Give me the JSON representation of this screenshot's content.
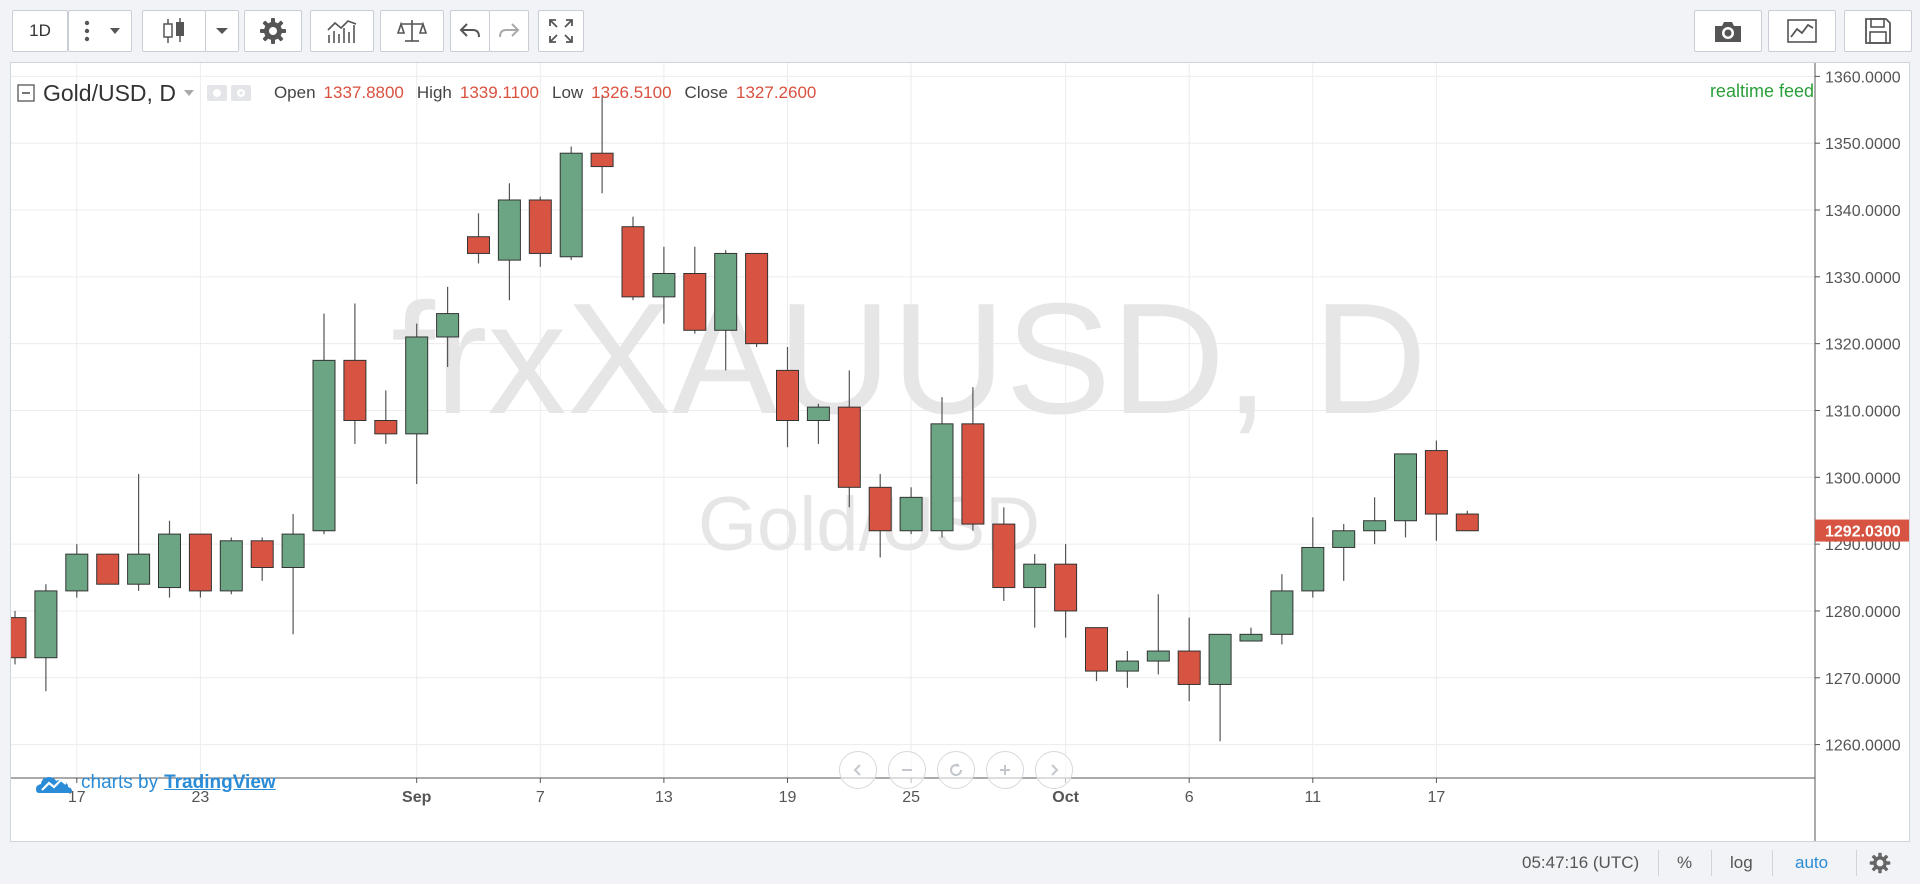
{
  "toolbar": {
    "interval_label": "1D",
    "icons": [
      "more-vertical-icon",
      "dropdown-arrow-icon",
      "candlestick-icon",
      "dropdown-arrow-icon",
      "gear-icon",
      "indicators-icon",
      "compare-icon",
      "undo-icon",
      "redo-icon",
      "fullscreen-icon",
      "camera-icon",
      "chart-template-icon",
      "save-icon"
    ]
  },
  "legend": {
    "symbol": "Gold/USD, D",
    "open_label": "Open",
    "open_value": "1337.8800",
    "high_label": "High",
    "high_value": "1339.1100",
    "low_label": "Low",
    "low_value": "1326.5100",
    "close_label": "Close",
    "close_value": "1327.2600"
  },
  "feed_label": "realtime feed",
  "watermark": {
    "main": "frxXAUUSD, D",
    "sub": "Gold/USD"
  },
  "branding": {
    "prefix": "charts by",
    "link": "TradingView"
  },
  "bottom": {
    "time": "05:47:16 (UTC)",
    "percent": "%",
    "log": "log",
    "auto": "auto"
  },
  "colors": {
    "up": "#6ba583",
    "down": "#d75442",
    "price_label": "#d75442",
    "auto": "#2a8bd6",
    "feed": "#2a9f3a"
  },
  "chart_data": {
    "type": "candlestick",
    "ylim": [
      1255,
      1362
    ],
    "yticks": [
      1260,
      1270,
      1280,
      1290,
      1300,
      1310,
      1320,
      1330,
      1340,
      1350,
      1360
    ],
    "ytick_labels": [
      "1260.0000",
      "1270.0000",
      "1280.0000",
      "1290.0000",
      "1300.0000",
      "1310.0000",
      "1320.0000",
      "1330.0000",
      "1340.0000",
      "1350.0000",
      "1360.0000"
    ],
    "last_price": 1292.03,
    "last_price_label": "1292.0300",
    "x_ticks": [
      {
        "idx": 2,
        "label": "17"
      },
      {
        "idx": 6,
        "label": "23"
      },
      {
        "idx": 13,
        "label": "Sep"
      },
      {
        "idx": 17,
        "label": "7"
      },
      {
        "idx": 21,
        "label": "13"
      },
      {
        "idx": 25,
        "label": "19"
      },
      {
        "idx": 29,
        "label": "25"
      },
      {
        "idx": 34,
        "label": "Oct"
      },
      {
        "idx": 38,
        "label": "6"
      },
      {
        "idx": 42,
        "label": "11"
      },
      {
        "idx": 46,
        "label": "17"
      }
    ],
    "candles": [
      {
        "o": 1279,
        "h": 1280,
        "l": 1272,
        "c": 1273
      },
      {
        "o": 1273,
        "h": 1284,
        "l": 1268,
        "c": 1283
      },
      {
        "o": 1283,
        "h": 1290,
        "l": 1282,
        "c": 1288.5
      },
      {
        "o": 1288.5,
        "h": 1288.5,
        "l": 1284,
        "c": 1284
      },
      {
        "o": 1284,
        "h": 1300.5,
        "l": 1283,
        "c": 1288.5
      },
      {
        "o": 1283.5,
        "h": 1293.5,
        "l": 1282,
        "c": 1291.5
      },
      {
        "o": 1291.5,
        "h": 1291.5,
        "l": 1282,
        "c": 1283
      },
      {
        "o": 1283,
        "h": 1291,
        "l": 1282.5,
        "c": 1290.5
      },
      {
        "o": 1290.5,
        "h": 1291,
        "l": 1284.5,
        "c": 1286.5
      },
      {
        "o": 1286.5,
        "h": 1294.5,
        "l": 1276.5,
        "c": 1291.5
      },
      {
        "o": 1292,
        "h": 1324.5,
        "l": 1291.5,
        "c": 1317.5
      },
      {
        "o": 1317.5,
        "h": 1326,
        "l": 1305,
        "c": 1308.5
      },
      {
        "o": 1308.5,
        "h": 1313,
        "l": 1305,
        "c": 1306.5
      },
      {
        "o": 1306.5,
        "h": 1323,
        "l": 1299,
        "c": 1321
      },
      {
        "o": 1321,
        "h": 1328.5,
        "l": 1316.5,
        "c": 1324.5
      },
      {
        "o": 1336,
        "h": 1339.5,
        "l": 1332,
        "c": 1333.5
      },
      {
        "o": 1332.5,
        "h": 1344,
        "l": 1326.5,
        "c": 1341.5
      },
      {
        "o": 1341.5,
        "h": 1342,
        "l": 1331.5,
        "c": 1333.5
      },
      {
        "o": 1333,
        "h": 1349.5,
        "l": 1332.5,
        "c": 1348.5
      },
      {
        "o": 1348.5,
        "h": 1357,
        "l": 1342.5,
        "c": 1346.5
      },
      {
        "o": 1337.5,
        "h": 1339,
        "l": 1326.5,
        "c": 1327
      },
      {
        "o": 1327,
        "h": 1334.5,
        "l": 1323,
        "c": 1330.5
      },
      {
        "o": 1330.5,
        "h": 1334.5,
        "l": 1321.5,
        "c": 1322
      },
      {
        "o": 1322,
        "h": 1334,
        "l": 1316,
        "c": 1333.5
      },
      {
        "o": 1333.5,
        "h": 1333.5,
        "l": 1319.5,
        "c": 1320
      },
      {
        "o": 1316,
        "h": 1319.5,
        "l": 1304.5,
        "c": 1308.5
      },
      {
        "o": 1308.5,
        "h": 1311,
        "l": 1305,
        "c": 1310.5
      },
      {
        "o": 1310.5,
        "h": 1316,
        "l": 1295.5,
        "c": 1298.5
      },
      {
        "o": 1298.5,
        "h": 1300.5,
        "l": 1288,
        "c": 1292
      },
      {
        "o": 1292,
        "h": 1298.5,
        "l": 1291.5,
        "c": 1297
      },
      {
        "o": 1292,
        "h": 1312,
        "l": 1291,
        "c": 1308
      },
      {
        "o": 1308,
        "h": 1313.5,
        "l": 1292,
        "c": 1293
      },
      {
        "o": 1293,
        "h": 1295.5,
        "l": 1281.5,
        "c": 1283.5
      },
      {
        "o": 1283.5,
        "h": 1288.5,
        "l": 1277.5,
        "c": 1287
      },
      {
        "o": 1287,
        "h": 1290,
        "l": 1276,
        "c": 1280
      },
      {
        "o": 1277.5,
        "h": 1277.5,
        "l": 1269.5,
        "c": 1271
      },
      {
        "o": 1271,
        "h": 1274,
        "l": 1268.5,
        "c": 1272.5
      },
      {
        "o": 1272.5,
        "h": 1282.5,
        "l": 1270.5,
        "c": 1274
      },
      {
        "o": 1274,
        "h": 1279,
        "l": 1266.5,
        "c": 1269
      },
      {
        "o": 1269,
        "h": 1276.5,
        "l": 1260.5,
        "c": 1276.5
      },
      {
        "o": 1275.5,
        "h": 1277.5,
        "l": 1275.5,
        "c": 1276.5
      },
      {
        "o": 1276.5,
        "h": 1285.5,
        "l": 1275,
        "c": 1283
      },
      {
        "o": 1283,
        "h": 1294,
        "l": 1282,
        "c": 1289.5
      },
      {
        "o": 1289.5,
        "h": 1293,
        "l": 1284.5,
        "c": 1292
      },
      {
        "o": 1292,
        "h": 1297,
        "l": 1290,
        "c": 1293.5
      },
      {
        "o": 1293.5,
        "h": 1303.5,
        "l": 1291,
        "c": 1303.5
      },
      {
        "o": 1304,
        "h": 1305.5,
        "l": 1290.5,
        "c": 1294.5
      },
      {
        "o": 1294.5,
        "h": 1295,
        "l": 1292,
        "c": 1292
      }
    ]
  }
}
